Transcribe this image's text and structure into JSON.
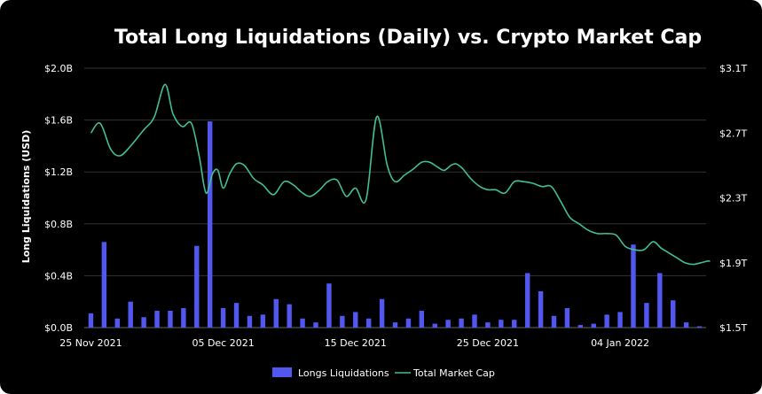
{
  "chart_data": {
    "type": "bar+line",
    "title": "Total Long Liquidations (Daily) vs. Crypto Market Cap",
    "ylabel": "Long Liquidations (USD)",
    "y_left": {
      "ylim": [
        0,
        2.0
      ],
      "ticks": [
        "$0.0B",
        "$0.4B",
        "$0.8B",
        "$1.2B",
        "$1.6B",
        "$2.0B"
      ]
    },
    "y_right": {
      "ylim": [
        1.5,
        3.1
      ],
      "ticks": [
        "$1.5T",
        "$1.9T",
        "$2.3T",
        "$2.7T",
        "$3.1T"
      ]
    },
    "x_ticks": [
      {
        "label": "25 Nov 2021",
        "index": 0
      },
      {
        "label": "05 Dec 2021",
        "index": 10
      },
      {
        "label": "15 Dec 2021",
        "index": 20
      },
      {
        "label": "25 Dec 2021",
        "index": 30
      },
      {
        "label": "04 Jan 2022",
        "index": 40
      }
    ],
    "grid": true,
    "legend": {
      "position": "bottom",
      "items": [
        "Longs Liquidations",
        "Total Market Cap"
      ]
    },
    "colors": {
      "bars": "#5257f0",
      "line": "#3fbf96",
      "background": "#000000",
      "grid": "#333333",
      "text": "#ffffff"
    },
    "series": [
      {
        "name": "Longs Liquidations",
        "type": "bar",
        "axis": "left",
        "values": [
          0.11,
          0.66,
          0.07,
          0.2,
          0.08,
          0.13,
          0.13,
          0.15,
          0.63,
          1.59,
          0.15,
          0.19,
          0.09,
          0.1,
          0.22,
          0.18,
          0.07,
          0.04,
          0.34,
          0.09,
          0.12,
          0.07,
          0.22,
          0.04,
          0.07,
          0.13,
          0.03,
          0.06,
          0.07,
          0.1,
          0.04,
          0.06,
          0.06,
          0.42,
          0.28,
          0.09,
          0.15,
          0.02,
          0.03,
          0.1,
          0.12,
          0.64,
          0.19,
          0.42,
          0.21,
          0.04,
          0.01
        ]
      },
      {
        "name": "Total Market Cap",
        "type": "line",
        "axis": "right",
        "x": [
          0,
          0.7,
          1.5,
          2.2,
          3.0,
          4.0,
          4.8,
          5.6,
          6.2,
          6.9,
          7.6,
          8.2,
          8.7,
          9.2,
          9.6,
          10.0,
          10.5,
          11.0,
          11.6,
          12.3,
          13.0,
          13.8,
          14.6,
          15.3,
          16.0,
          16.6,
          17.3,
          17.9,
          18.6,
          19.3,
          20.0,
          20.8,
          21.6,
          22.4,
          23.0,
          23.7,
          24.4,
          25.0,
          25.6,
          26.2,
          26.7,
          27.2,
          27.6,
          28.1,
          28.7,
          29.4,
          30.0,
          30.6,
          31.3,
          32.0,
          32.7,
          33.4,
          34.1,
          34.8,
          35.5,
          36.2,
          36.9,
          37.6,
          38.3,
          39.0,
          39.7,
          40.4,
          41.1,
          41.8,
          42.5,
          43.1,
          43.7,
          44.3,
          44.9,
          45.5,
          46.1,
          46.6,
          46.8
        ],
        "values": [
          2.7,
          2.76,
          2.6,
          2.56,
          2.62,
          2.72,
          2.8,
          3.0,
          2.82,
          2.74,
          2.76,
          2.55,
          2.33,
          2.45,
          2.47,
          2.36,
          2.45,
          2.51,
          2.5,
          2.42,
          2.38,
          2.32,
          2.4,
          2.38,
          2.33,
          2.31,
          2.35,
          2.4,
          2.41,
          2.31,
          2.36,
          2.29,
          2.8,
          2.5,
          2.4,
          2.44,
          2.48,
          2.52,
          2.52,
          2.49,
          2.47,
          2.5,
          2.51,
          2.48,
          2.42,
          2.37,
          2.35,
          2.35,
          2.33,
          2.4,
          2.4,
          2.39,
          2.37,
          2.37,
          2.28,
          2.18,
          2.14,
          2.1,
          2.08,
          2.08,
          2.07,
          2.0,
          1.98,
          1.98,
          2.03,
          1.99,
          1.96,
          1.93,
          1.9,
          1.89,
          1.9,
          1.91,
          1.91
        ]
      }
    ]
  }
}
